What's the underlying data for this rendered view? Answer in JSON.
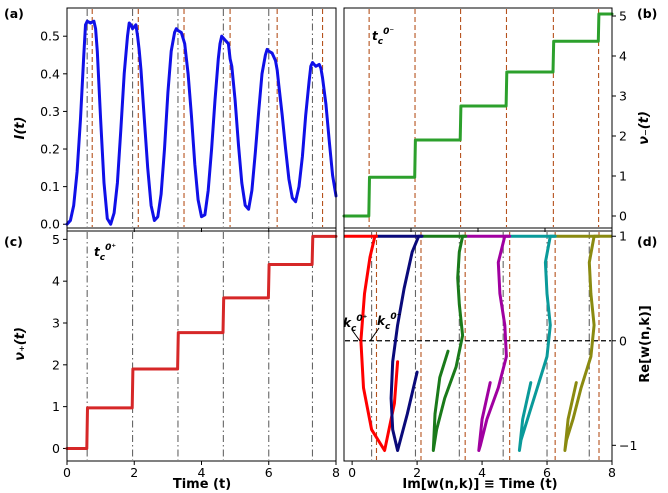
{
  "figure": {
    "panels": [
      "(a)",
      "(b)",
      "(c)",
      "(d)"
    ],
    "annotations": {
      "b": {
        "base": "t",
        "sub": "c",
        "sup": "0⁻"
      },
      "c": {
        "base": "t",
        "sub": "c",
        "sup": "0⁺"
      },
      "d_left": {
        "base": "k",
        "sub": "c",
        "sup": "0⁺"
      },
      "d_right": {
        "base": "k",
        "sub": "c",
        "sup": "0⁻"
      }
    }
  },
  "chart_data": [
    {
      "panel": "(a)",
      "type": "line",
      "ylabel": "I(t)",
      "xlim": [
        0,
        8
      ],
      "ylim": [
        -0.01,
        0.575
      ],
      "xticks": [
        "0",
        "2",
        "4",
        "6",
        "8"
      ],
      "xticks_shown": false,
      "yticks": [
        0.0,
        0.1,
        0.2,
        0.3,
        0.4,
        0.5
      ],
      "ytick_labels": [
        "0.0",
        "0.1",
        "0.2",
        "0.3",
        "0.4",
        "0.5"
      ],
      "series": [
        {
          "color": "#1010e8",
          "x": [
            0.0,
            0.1,
            0.2,
            0.3,
            0.4,
            0.5,
            0.55,
            0.6,
            0.7,
            0.8,
            0.85,
            0.9,
            1.0,
            1.1,
            1.2,
            1.3,
            1.4,
            1.5,
            1.6,
            1.7,
            1.8,
            1.85,
            1.9,
            1.95,
            2.05,
            2.1,
            2.15,
            2.2,
            2.3,
            2.4,
            2.5,
            2.6,
            2.7,
            2.8,
            2.9,
            3.0,
            3.1,
            3.2,
            3.25,
            3.3,
            3.4,
            3.5,
            3.55,
            3.6,
            3.7,
            3.8,
            3.9,
            4.0,
            4.1,
            4.2,
            4.3,
            4.4,
            4.5,
            4.55,
            4.6,
            4.7,
            4.8,
            4.85,
            4.9,
            5.0,
            5.1,
            5.2,
            5.3,
            5.4,
            5.5,
            5.6,
            5.7,
            5.8,
            5.9,
            5.95,
            6.0,
            6.1,
            6.2,
            6.25,
            6.3,
            6.4,
            6.5,
            6.6,
            6.7,
            6.8,
            6.9,
            7.0,
            7.1,
            7.2,
            7.25,
            7.3,
            7.4,
            7.5,
            7.55,
            7.6,
            7.7,
            7.8,
            7.9,
            8.0
          ],
          "y": [
            0.0,
            0.01,
            0.05,
            0.14,
            0.28,
            0.45,
            0.53,
            0.54,
            0.535,
            0.54,
            0.52,
            0.46,
            0.28,
            0.11,
            0.015,
            0.0,
            0.03,
            0.11,
            0.25,
            0.4,
            0.5,
            0.535,
            0.53,
            0.52,
            0.53,
            0.5,
            0.46,
            0.41,
            0.28,
            0.15,
            0.05,
            0.01,
            0.02,
            0.08,
            0.2,
            0.35,
            0.46,
            0.51,
            0.52,
            0.515,
            0.51,
            0.48,
            0.44,
            0.4,
            0.29,
            0.16,
            0.065,
            0.02,
            0.025,
            0.09,
            0.2,
            0.33,
            0.44,
            0.48,
            0.5,
            0.49,
            0.48,
            0.44,
            0.42,
            0.33,
            0.21,
            0.11,
            0.05,
            0.04,
            0.09,
            0.19,
            0.3,
            0.4,
            0.45,
            0.465,
            0.46,
            0.455,
            0.435,
            0.41,
            0.37,
            0.29,
            0.2,
            0.12,
            0.07,
            0.06,
            0.1,
            0.18,
            0.29,
            0.38,
            0.42,
            0.43,
            0.42,
            0.425,
            0.415,
            0.39,
            0.32,
            0.22,
            0.13,
            0.075
          ]
        }
      ],
      "vlines": [
        {
          "style": "dashdot",
          "color": "#666666",
          "x": [
            0.6,
            1.95,
            3.3,
            4.65,
            6.0,
            7.3
          ]
        },
        {
          "style": "dashed",
          "color": "#b5521d",
          "x": [
            0.75,
            2.12,
            3.48,
            4.85,
            6.25,
            7.6
          ]
        }
      ]
    },
    {
      "panel": "(b)",
      "type": "line",
      "ylabel": "ν₋(t)",
      "ylabel_side": "right",
      "xlim": [
        0,
        8
      ],
      "ylim": [
        -0.3,
        5.2
      ],
      "xticks": [
        "0",
        "2",
        "4",
        "6",
        "8"
      ],
      "xticks_shown": false,
      "yticks": [
        0,
        1,
        2,
        3,
        4,
        5
      ],
      "ytick_labels": [
        "0",
        "1",
        "2",
        "3",
        "4",
        "5"
      ],
      "series": [
        {
          "color": "#2ca02c",
          "x": [
            0.0,
            0.74,
            0.76,
            2.11,
            2.13,
            3.47,
            3.49,
            4.84,
            4.86,
            6.24,
            6.26,
            7.59,
            7.61,
            8.0
          ],
          "y": [
            0.0,
            0.0,
            0.97,
            0.97,
            1.9,
            1.9,
            2.75,
            2.75,
            3.6,
            3.6,
            4.37,
            4.37,
            5.05,
            5.05
          ]
        }
      ],
      "vlines": [
        {
          "style": "dashed",
          "color": "#b5521d",
          "x": [
            0.75,
            2.12,
            3.48,
            4.85,
            6.25,
            7.6
          ]
        }
      ]
    },
    {
      "panel": "(c)",
      "type": "line",
      "xlabel": "Time (t)",
      "ylabel": "ν₊(t)",
      "xlim": [
        0,
        8
      ],
      "ylim": [
        -0.3,
        5.2
      ],
      "xticks": [
        0,
        2,
        4,
        6,
        8
      ],
      "xtick_labels": [
        "0",
        "2",
        "4",
        "6",
        "8"
      ],
      "yticks": [
        0,
        1,
        2,
        3,
        4,
        5
      ],
      "ytick_labels": [
        "0",
        "1",
        "2",
        "3",
        "4",
        "5"
      ],
      "series": [
        {
          "color": "#d62728",
          "x": [
            0.0,
            0.59,
            0.61,
            1.94,
            1.96,
            3.29,
            3.31,
            4.64,
            4.66,
            5.99,
            6.01,
            7.29,
            7.31,
            8.0
          ],
          "y": [
            0.0,
            0.0,
            0.97,
            0.97,
            1.9,
            1.9,
            2.77,
            2.77,
            3.6,
            3.6,
            4.4,
            4.4,
            5.07,
            5.07
          ]
        }
      ],
      "vlines": [
        {
          "style": "dashdot",
          "color": "#666666",
          "x": [
            0.6,
            1.95,
            3.3,
            4.65,
            6.0,
            7.3
          ]
        }
      ]
    },
    {
      "panel": "(d)",
      "type": "line",
      "xlabel": "Im[w(n,k)] ≡ Time (t)",
      "ylabel": "Re[w(n,k)]",
      "ylabel_side": "right",
      "xlim": [
        -0.25,
        8
      ],
      "ylim": [
        -1.15,
        1.05
      ],
      "xticks": [
        0,
        2,
        4,
        6,
        8
      ],
      "xtick_labels": [
        "0",
        "2",
        "4",
        "6",
        "8"
      ],
      "yticks": [
        -1,
        0,
        1
      ],
      "ytick_labels": [
        "−1",
        "0",
        "1"
      ],
      "hline": {
        "y": 0,
        "style": "dashed",
        "color": "#000000"
      },
      "series": [
        {
          "color": "#ff0000",
          "x": [
            0.75,
            0.7,
            0.55,
            0.38,
            0.27,
            0.35,
            0.6,
            1.0,
            1.3,
            1.4
          ],
          "y": [
            1.0,
            1.0,
            0.8,
            0.45,
            0.0,
            -0.45,
            -0.85,
            -1.05,
            -0.6,
            -0.2
          ]
        },
        {
          "color": "#0a0a7a",
          "x": [
            2.15,
            2.05,
            1.85,
            1.6,
            1.4,
            1.25,
            1.2,
            1.25,
            1.4,
            1.7,
            2.0
          ],
          "y": [
            1.0,
            1.0,
            0.85,
            0.5,
            0.15,
            -0.2,
            -0.55,
            -0.85,
            -1.05,
            -0.7,
            -0.3
          ]
        },
        {
          "color": "#1a7a1a",
          "x": [
            3.5,
            3.4,
            3.3,
            3.25,
            3.3,
            3.4,
            3.2,
            2.85,
            2.6,
            2.5,
            2.55,
            2.7,
            2.95
          ],
          "y": [
            1.0,
            1.0,
            0.85,
            0.6,
            0.35,
            0.05,
            -0.25,
            -0.55,
            -0.85,
            -1.05,
            -0.7,
            -0.35,
            -0.1
          ]
        },
        {
          "color": "#a000a0",
          "x": [
            4.85,
            4.7,
            4.5,
            4.55,
            4.7,
            4.75,
            4.5,
            4.15,
            3.95,
            3.9,
            4.0,
            4.25
          ],
          "y": [
            1.0,
            1.0,
            0.75,
            0.45,
            0.15,
            -0.15,
            -0.45,
            -0.75,
            -1.0,
            -1.05,
            -0.75,
            -0.4
          ]
        },
        {
          "color": "#0a9a9a",
          "x": [
            6.25,
            6.1,
            5.95,
            6.0,
            6.1,
            6.0,
            5.7,
            5.4,
            5.2,
            5.15,
            5.25,
            5.5
          ],
          "y": [
            1.0,
            1.0,
            0.75,
            0.45,
            0.15,
            -0.15,
            -0.45,
            -0.75,
            -0.95,
            -1.05,
            -0.75,
            -0.4
          ]
        },
        {
          "color": "#8a8a10",
          "x": [
            7.6,
            7.45,
            7.3,
            7.35,
            7.45,
            7.35,
            7.05,
            6.8,
            6.6,
            6.55,
            6.65,
            6.9
          ],
          "y": [
            1.0,
            1.0,
            0.75,
            0.45,
            0.15,
            -0.15,
            -0.45,
            -0.75,
            -0.95,
            -1.05,
            -0.75,
            -0.4
          ]
        }
      ],
      "top_line": {
        "x": [
          -0.25,
          8.0
        ],
        "y": 1.0,
        "colors": [
          "#ff0000",
          "#0a0a7a",
          "#1a7a1a",
          "#a000a0",
          "#0a9a9a",
          "#8a8a10"
        ],
        "segments": [
          [
            -0.25,
            0.75
          ],
          [
            0.75,
            2.15
          ],
          [
            2.15,
            3.5
          ],
          [
            3.5,
            4.85
          ],
          [
            4.85,
            6.25
          ],
          [
            6.25,
            7.6
          ],
          [
            7.6,
            8.0
          ]
        ]
      },
      "vlines": [
        {
          "style": "dashdot",
          "color": "#666666",
          "x": [
            0.6,
            1.95,
            3.3,
            4.65,
            6.0,
            7.3
          ]
        },
        {
          "style": "dashed",
          "color": "#b5521d",
          "x": [
            0.75,
            2.12,
            3.48,
            4.85,
            6.25,
            7.6
          ]
        }
      ]
    }
  ]
}
